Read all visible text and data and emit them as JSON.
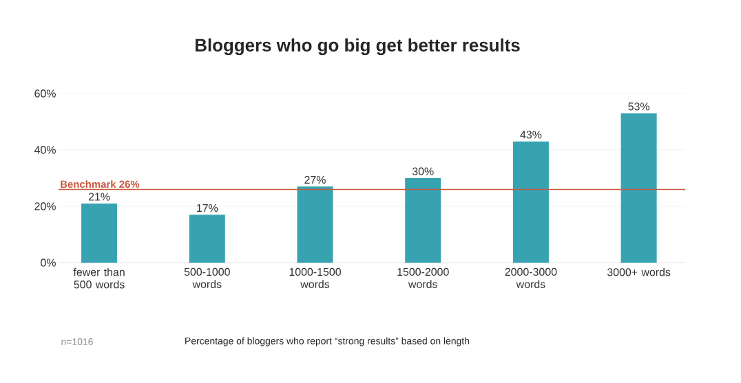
{
  "chart_data": {
    "type": "bar",
    "title": "Bloggers who go big get better results",
    "categories": [
      "fewer than 500 words",
      "500-1000 words",
      "1000-1500 words",
      "1500-2000 words",
      "2000-3000 words",
      "3000+ words"
    ],
    "values": [
      21,
      17,
      27,
      30,
      43,
      53
    ],
    "value_labels": [
      "21%",
      "17%",
      "27%",
      "30%",
      "43%",
      "53%"
    ],
    "color": "#38a3b0",
    "ylim": [
      0,
      60
    ],
    "yticks": [
      {
        "value": 0,
        "label": "0%"
      },
      {
        "value": 20,
        "label": "20%"
      },
      {
        "value": 40,
        "label": "40%"
      },
      {
        "value": 60,
        "label": "60%"
      }
    ],
    "grid": "y",
    "ref_lines": [
      {
        "axis": "y",
        "value": 26,
        "label": "Benchmark 26%",
        "color": "#c9573f"
      }
    ],
    "annotations": [
      "n=1016",
      "Percentage of bloggers who report “strong results” based on length"
    ]
  }
}
